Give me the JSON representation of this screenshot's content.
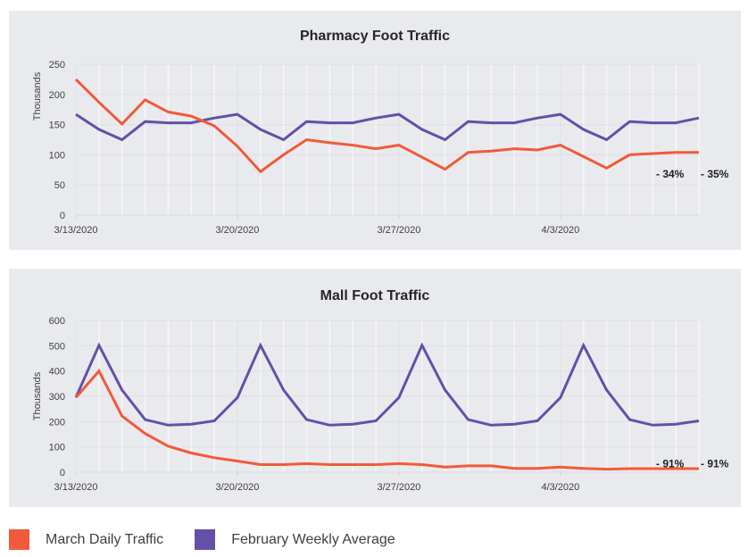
{
  "colors": {
    "march": "#f15a3a",
    "february": "#6450a8",
    "panel_bg": "#e9eaee",
    "grid": "#f7f7f9"
  },
  "legend": {
    "items": [
      {
        "label": "March Daily Traffic",
        "color": "#f15a3a"
      },
      {
        "label": "February Weekly Average",
        "color": "#6450a8"
      }
    ]
  },
  "chart_data": [
    {
      "type": "line",
      "title": "Pharmacy Foot Traffic",
      "xlabel": "",
      "ylabel": "Thousands",
      "ylim": [
        0,
        250
      ],
      "yticks": [
        0,
        50,
        100,
        150,
        200,
        250
      ],
      "grid": true,
      "legend_position": "bottom-left",
      "x": [
        "3/13/2020",
        "3/14/2020",
        "3/15/2020",
        "3/16/2020",
        "3/17/2020",
        "3/18/2020",
        "3/19/2020",
        "3/20/2020",
        "3/21/2020",
        "3/22/2020",
        "3/23/2020",
        "3/24/2020",
        "3/25/2020",
        "3/26/2020",
        "3/27/2020",
        "3/28/2020",
        "3/29/2020",
        "3/30/2020",
        "3/31/2020",
        "4/1/2020",
        "4/2/2020",
        "4/3/2020",
        "4/4/2020",
        "4/5/2020",
        "4/6/2020",
        "4/7/2020",
        "4/8/2020",
        "4/9/2020"
      ],
      "xtick_labels": [
        "3/13/2020",
        "3/20/2020",
        "3/27/2020",
        "4/3/2020"
      ],
      "xtick_indices": [
        0,
        7,
        14,
        21
      ],
      "series": [
        {
          "name": "March Daily Traffic",
          "values": [
            225,
            187,
            151,
            191,
            171,
            164,
            148,
            114,
            72,
            100,
            125,
            120,
            116,
            110,
            116,
            96,
            76,
            104,
            106,
            110,
            108,
            116,
            97,
            78,
            100,
            102,
            104,
            104
          ]
        },
        {
          "name": "February Weekly Average",
          "values": [
            167,
            142,
            125,
            155,
            153,
            153,
            161,
            167,
            142,
            125,
            155,
            153,
            153,
            161,
            167,
            142,
            125,
            155,
            153,
            153,
            161,
            167,
            142,
            125,
            155,
            153,
            153,
            161
          ]
        }
      ],
      "annotations": [
        {
          "text": "- 34%",
          "x_index": 26,
          "y": 68
        },
        {
          "text": "- 35%",
          "x_index": 28,
          "y": 68
        }
      ]
    },
    {
      "type": "line",
      "title": "Mall Foot Traffic",
      "xlabel": "",
      "ylabel": "Thousands",
      "ylim": [
        0,
        600
      ],
      "yticks": [
        0,
        100,
        200,
        300,
        400,
        500,
        600
      ],
      "grid": true,
      "legend_position": "bottom-left",
      "x": [
        "3/13/2020",
        "3/14/2020",
        "3/15/2020",
        "3/16/2020",
        "3/17/2020",
        "3/18/2020",
        "3/19/2020",
        "3/20/2020",
        "3/21/2020",
        "3/22/2020",
        "3/23/2020",
        "3/24/2020",
        "3/25/2020",
        "3/26/2020",
        "3/27/2020",
        "3/28/2020",
        "3/29/2020",
        "3/30/2020",
        "3/31/2020",
        "4/1/2020",
        "4/2/2020",
        "4/3/2020",
        "4/4/2020",
        "4/5/2020",
        "4/6/2020",
        "4/7/2020",
        "4/8/2020",
        "4/9/2020"
      ],
      "xtick_labels": [
        "3/13/2020",
        "3/20/2020",
        "3/27/2020",
        "4/3/2020"
      ],
      "xtick_indices": [
        0,
        7,
        14,
        21
      ],
      "series": [
        {
          "name": "March Daily Traffic",
          "values": [
            295,
            400,
            222,
            153,
            103,
            76,
            57,
            44,
            30,
            30,
            34,
            30,
            30,
            30,
            34,
            30,
            20,
            25,
            25,
            15,
            15,
            20,
            15,
            12,
            14,
            14,
            14,
            14
          ]
        },
        {
          "name": "February Weekly Average",
          "values": [
            295,
            502,
            325,
            208,
            186,
            190,
            203,
            295,
            502,
            325,
            208,
            186,
            190,
            203,
            295,
            502,
            325,
            208,
            186,
            190,
            203,
            295,
            502,
            325,
            208,
            186,
            190,
            203
          ]
        }
      ],
      "annotations": [
        {
          "text": "- 91%",
          "x_index": 26,
          "y": 68
        },
        {
          "text": "- 91%",
          "x_index": 28,
          "y": 68
        }
      ]
    }
  ]
}
